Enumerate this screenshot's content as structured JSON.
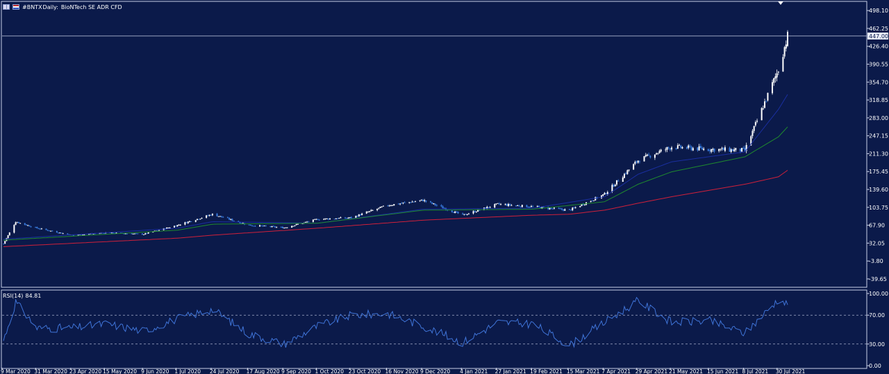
{
  "header": {
    "symbol": "#BNTX",
    "timeframe": "Daily:",
    "description": "BioNTech SE ADR CFD"
  },
  "rsi_panel": {
    "name": "RSI(14)",
    "value": "84.81"
  },
  "colors": {
    "background": "#0b1a4a",
    "frame": "#c8d0e8",
    "candle_up": "#ffffff",
    "candle_down": "#3a7de0",
    "ma_fast": "#1a2fa0",
    "ma_mid": "#1f8a2e",
    "ma_slow": "#d0203a",
    "rsi_line": "#3f74d8",
    "current_price_line": "#c8d0e8"
  },
  "chart_data": [
    {
      "type": "candlestick",
      "title": "#BNTX, Daily: BioNTech SE ADR CFD",
      "yticks": [
        "498.10",
        "462.25",
        "426.40",
        "390.55",
        "354.70",
        "318.85",
        "283.00",
        "247.15",
        "211.30",
        "175.45",
        "139.60",
        "103.75",
        "67.90",
        "32.05",
        "-3.80",
        "-39.65"
      ],
      "current_price_label": "447.00",
      "current_price": 447.0,
      "ylim": [
        -55,
        515
      ],
      "x_tick_labels": [
        "9 Mar 2020",
        "31 Mar 2020",
        "23 Apr 2020",
        "15 May 2020",
        "9 Jun 2020",
        "1 Jul 2020",
        "24 Jul 2020",
        "17 Aug 2020",
        "9 Sep 2020",
        "1 Oct 2020",
        "23 Oct 2020",
        "16 Nov 2020",
        "9 Dec 2020",
        "4 Jan 2021",
        "27 Jan 2021",
        "19 Feb 2021",
        "15 Mar 2021",
        "7 Apr 2021",
        "29 Apr 2021",
        "21 May 2021",
        "15 Jun 2021",
        "8 Jul 2021",
        "30 Jul 2021"
      ],
      "closing_prices_approx": [
        {
          "date": "9 Mar 2020",
          "close": 31
        },
        {
          "date": "17 Mar 2020",
          "close": 75
        },
        {
          "date": "31 Mar 2020",
          "close": 62
        },
        {
          "date": "23 Apr 2020",
          "close": 48
        },
        {
          "date": "15 May 2020",
          "close": 53
        },
        {
          "date": "9 Jun 2020",
          "close": 50
        },
        {
          "date": "1 Jul 2020",
          "close": 68
        },
        {
          "date": "24 Jul 2020",
          "close": 90
        },
        {
          "date": "17 Aug 2020",
          "close": 68
        },
        {
          "date": "9 Sep 2020",
          "close": 63
        },
        {
          "date": "1 Oct 2020",
          "close": 80
        },
        {
          "date": "23 Oct 2020",
          "close": 83
        },
        {
          "date": "16 Nov 2020",
          "close": 108
        },
        {
          "date": "9 Dec 2020",
          "close": 118
        },
        {
          "date": "4 Jan 2021",
          "close": 88
        },
        {
          "date": "27 Jan 2021",
          "close": 110
        },
        {
          "date": "19 Feb 2021",
          "close": 105
        },
        {
          "date": "15 Mar 2021",
          "close": 98
        },
        {
          "date": "7 Apr 2021",
          "close": 130
        },
        {
          "date": "29 Apr 2021",
          "close": 198
        },
        {
          "date": "21 May 2021",
          "close": 225
        },
        {
          "date": "15 Jun 2021",
          "close": 220
        },
        {
          "date": "8 Jul 2021",
          "close": 218
        },
        {
          "date": "30 Jul 2021",
          "close": 380
        },
        {
          "date": "5 Aug 2021",
          "close": 447
        }
      ],
      "moving_averages": [
        {
          "color": "#1a2fa0",
          "points": [
            [
              "9 Mar 2020",
              40
            ],
            [
              "1 Jul 2020",
              62
            ],
            [
              "24 Jul 2020",
              75
            ],
            [
              "1 Oct 2020",
              72
            ],
            [
              "9 Dec 2020",
              100
            ],
            [
              "19 Feb 2021",
              102
            ],
            [
              "7 Apr 2021",
              125
            ],
            [
              "29 Apr 2021",
              170
            ],
            [
              "21 May 2021",
              195
            ],
            [
              "8 Jul 2021",
              215
            ],
            [
              "30 Jul 2021",
              300
            ],
            [
              "5 Aug 2021",
              330
            ]
          ]
        },
        {
          "color": "#1f8a2e",
          "points": [
            [
              "9 Mar 2020",
              38
            ],
            [
              "1 Jul 2020",
              58
            ],
            [
              "24 Jul 2020",
              70
            ],
            [
              "1 Oct 2020",
              72
            ],
            [
              "9 Dec 2020",
              98
            ],
            [
              "19 Feb 2021",
              100
            ],
            [
              "7 Apr 2021",
              115
            ],
            [
              "29 Apr 2021",
              150
            ],
            [
              "21 May 2021",
              175
            ],
            [
              "8 Jul 2021",
              205
            ],
            [
              "30 Jul 2021",
              245
            ],
            [
              "5 Aug 2021",
              265
            ]
          ]
        },
        {
          "color": "#d0203a",
          "points": [
            [
              "9 Mar 2020",
              25
            ],
            [
              "1 Jul 2020",
              42
            ],
            [
              "24 Jul 2020",
              48
            ],
            [
              "1 Oct 2020",
              62
            ],
            [
              "9 Dec 2020",
              78
            ],
            [
              "19 Feb 2021",
              88
            ],
            [
              "15 Mar 2021",
              90
            ],
            [
              "7 Apr 2021",
              98
            ],
            [
              "29 Apr 2021",
              112
            ],
            [
              "21 May 2021",
              125
            ],
            [
              "8 Jul 2021",
              150
            ],
            [
              "30 Jul 2021",
              165
            ],
            [
              "5 Aug 2021",
              178
            ]
          ]
        }
      ]
    },
    {
      "type": "line",
      "title": "RSI(14) 84.81",
      "yticks": [
        "100.00",
        "70.00",
        "30.00",
        "0.00"
      ],
      "ylim": [
        0,
        100
      ],
      "reference_levels": [
        70,
        30
      ],
      "series": [
        {
          "values": [
            [
              "9 Mar 2020",
              35
            ],
            [
              "17 Mar 2020",
              88
            ],
            [
              "31 Mar 2020",
              52
            ],
            [
              "23 Apr 2020",
              52
            ],
            [
              "15 May 2020",
              58
            ],
            [
              "9 Jun 2020",
              48
            ],
            [
              "1 Jul 2020",
              65
            ],
            [
              "24 Jul 2020",
              78
            ],
            [
              "17 Aug 2020",
              44
            ],
            [
              "9 Sep 2020",
              30
            ],
            [
              "1 Oct 2020",
              55
            ],
            [
              "23 Oct 2020",
              70
            ],
            [
              "16 Nov 2020",
              72
            ],
            [
              "9 Dec 2020",
              55
            ],
            [
              "4 Jan 2021",
              32
            ],
            [
              "27 Jan 2021",
              60
            ],
            [
              "19 Feb 2021",
              58
            ],
            [
              "15 Mar 2021",
              28
            ],
            [
              "7 Apr 2021",
              60
            ],
            [
              "29 Apr 2021",
              90
            ],
            [
              "21 May 2021",
              60
            ],
            [
              "15 Jun 2021",
              62
            ],
            [
              "8 Jul 2021",
              45
            ],
            [
              "30 Jul 2021",
              92
            ],
            [
              "5 Aug 2021",
              84.81
            ]
          ]
        }
      ]
    }
  ]
}
